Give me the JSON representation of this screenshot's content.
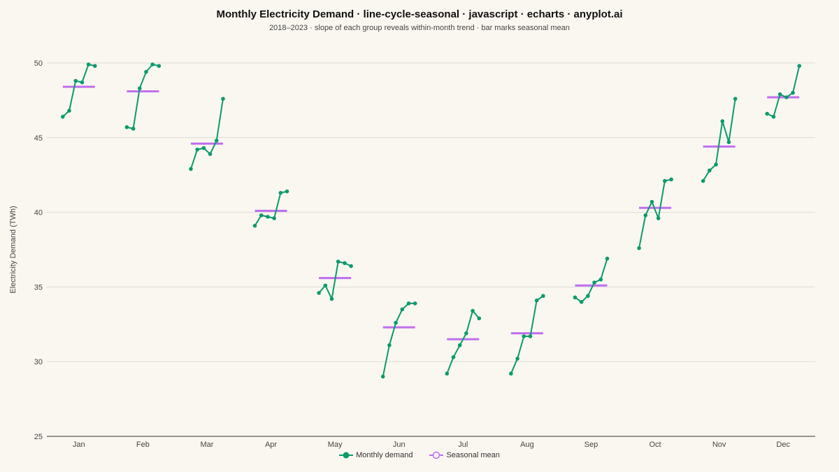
{
  "header": {
    "title": "Monthly Electricity Demand · line-cycle-seasonal · javascript · echarts · anyplot.ai",
    "subtitle": "2018–2023  ·  slope of each group reveals within-month trend  ·  bar marks seasonal mean"
  },
  "colors": {
    "line": "#0b9a6d",
    "mean": "#c06ef0",
    "grid": "#dcdad4",
    "axis": "#333333"
  },
  "chart_data": {
    "type": "line",
    "ylabel": "Electricity Demand (TWh)",
    "xlabel": "",
    "ylim": [
      25,
      50
    ],
    "yticks": [
      25,
      30,
      35,
      40,
      45,
      50
    ],
    "grid": true,
    "legend_position": "bottom",
    "categories": [
      "Jan",
      "Feb",
      "Mar",
      "Apr",
      "May",
      "Jun",
      "Jul",
      "Aug",
      "Sep",
      "Oct",
      "Nov",
      "Dec"
    ],
    "years": [
      "2018",
      "2019",
      "2020",
      "2021",
      "2022",
      "2023"
    ],
    "series": [
      {
        "name": "Monthly demand",
        "values": [
          [
            46.4,
            46.8,
            48.8,
            48.7,
            49.9,
            49.8
          ],
          [
            45.7,
            45.6,
            48.3,
            49.4,
            49.9,
            49.8
          ],
          [
            42.9,
            44.2,
            44.3,
            43.9,
            44.8,
            47.6
          ],
          [
            39.1,
            39.8,
            39.7,
            39.6,
            41.3,
            41.4
          ],
          [
            34.6,
            35.1,
            34.2,
            36.7,
            36.6,
            36.4
          ],
          [
            29.0,
            31.1,
            32.6,
            33.5,
            33.9,
            33.9
          ],
          [
            29.2,
            30.3,
            31.1,
            31.9,
            33.4,
            32.9
          ],
          [
            29.2,
            30.2,
            31.7,
            31.7,
            34.1,
            34.4
          ],
          [
            34.3,
            34.0,
            34.4,
            35.3,
            35.5,
            36.9
          ],
          [
            37.6,
            39.8,
            40.7,
            39.6,
            42.1,
            42.2
          ],
          [
            42.1,
            42.8,
            43.2,
            46.1,
            44.7,
            47.6
          ],
          [
            46.6,
            46.4,
            47.9,
            47.7,
            48.0,
            49.8
          ]
        ]
      },
      {
        "name": "Seasonal mean",
        "values": [
          48.4,
          48.1,
          44.6,
          40.1,
          35.6,
          32.3,
          31.5,
          31.9,
          35.1,
          40.3,
          44.4,
          47.7
        ]
      }
    ]
  }
}
